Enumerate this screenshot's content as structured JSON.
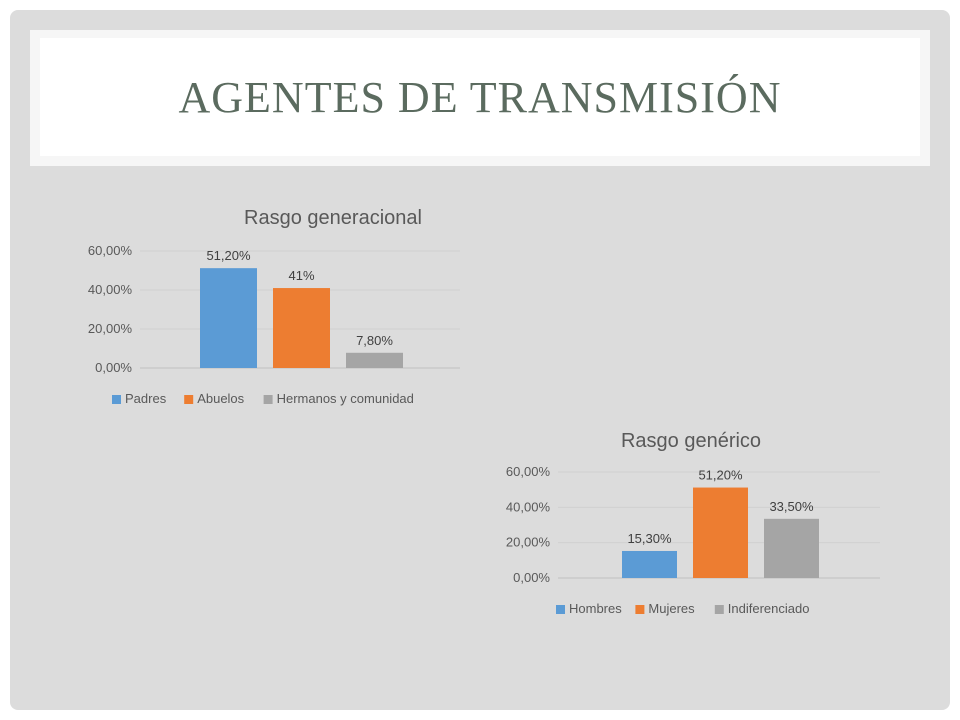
{
  "slide": {
    "title": "AGENTES DE TRANSMISIÓN"
  },
  "colors": {
    "blue": "#5b9bd5",
    "orange": "#ed7d31",
    "gray": "#a5a5a5",
    "text": "#595959",
    "title": "#5b6b5f"
  },
  "chart_data": [
    {
      "type": "bar",
      "title": "Rasgo generacional",
      "categories": [
        "Padres",
        "Abuelos",
        "Hermanos y comunidad"
      ],
      "values": [
        51.2,
        41,
        7.8
      ],
      "data_labels": [
        "51,20%",
        "41%",
        "7,80%"
      ],
      "yticks": [
        "0,00%",
        "20,00%",
        "40,00%",
        "60,00%"
      ],
      "ylim": [
        0,
        60
      ],
      "legend": "bottom",
      "grid": true
    },
    {
      "type": "bar",
      "title": "Rasgo genérico",
      "categories": [
        "Hombres",
        "Mujeres",
        "Indiferenciado"
      ],
      "values": [
        15.3,
        51.2,
        33.5
      ],
      "data_labels": [
        "15,30%",
        "51,20%",
        "33,50%"
      ],
      "yticks": [
        "0,00%",
        "20,00%",
        "40,00%",
        "60,00%"
      ],
      "ylim": [
        0,
        60
      ],
      "legend": "bottom",
      "grid": true
    }
  ]
}
